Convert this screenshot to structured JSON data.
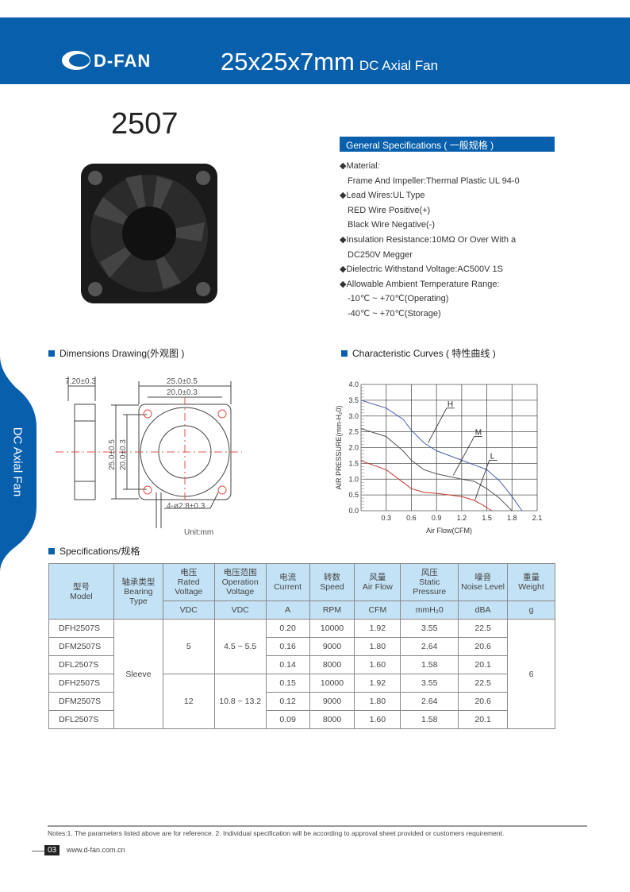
{
  "header": {
    "brand": "D-FAN",
    "size": "25x25x7mm",
    "type": "DC Axial Fan"
  },
  "model": "2507",
  "general": {
    "title": "General Specifications ( 一般规格 )",
    "lines": [
      {
        "bullet": true,
        "text": "Material:"
      },
      {
        "bullet": false,
        "text": "Frame And Impeller:Thermal Plastic UL 94-0"
      },
      {
        "bullet": true,
        "text": "Lead Wires:UL Type"
      },
      {
        "bullet": false,
        "text": "RED Wire Positive(+)"
      },
      {
        "bullet": false,
        "text": "Black Wire Negative(-)"
      },
      {
        "bullet": true,
        "text": "Insulation Resistance:10MΩ  Or Over With a"
      },
      {
        "bullet": false,
        "text": " DC250V Megger"
      },
      {
        "bullet": true,
        "text": "Dielectric Withstand Voltage:AC500V 1S"
      },
      {
        "bullet": true,
        "text": "Allowable Ambient Temperature Range:"
      },
      {
        "bullet": false,
        "text": "-10℃ ~ +70℃(Operating)"
      },
      {
        "bullet": false,
        "text": "-40℃ ~ +70℃(Storage)"
      }
    ]
  },
  "side_tab": "DC Axial Fan",
  "dimensions": {
    "title": "Dimensions Drawing(外观图 )",
    "thickness": "7.20±0.3",
    "outer": "25.0±0.5",
    "pitch": "20.0±0.3",
    "holes": "4-ø2.8±0.3",
    "unit": "Unit:mm"
  },
  "curves_title": "Characteristic Curves ( 特性曲线 )",
  "chart_data": {
    "type": "line",
    "xlabel": "Air Flow(CFM)",
    "ylabel": "AIR PRESSURE(mm-H₂0)",
    "xlim": [
      0,
      2.1
    ],
    "ylim": [
      0,
      4.0
    ],
    "grid": true,
    "xticks": [
      "0.3",
      "0.6",
      "0.9",
      "1.2",
      "1.5",
      "1.8",
      "2.1"
    ],
    "yticks": [
      "0.0",
      "0.5",
      "1.0",
      "1.5",
      "2.0",
      "2.5",
      "3.0",
      "3.5",
      "4.0"
    ],
    "series": [
      {
        "name": "H",
        "color": "#4a5fb0",
        "points": [
          [
            0,
            3.5
          ],
          [
            0.3,
            3.25
          ],
          [
            0.5,
            2.9
          ],
          [
            0.6,
            2.55
          ],
          [
            0.75,
            2.15
          ],
          [
            0.9,
            1.9
          ],
          [
            1.2,
            1.6
          ],
          [
            1.5,
            1.3
          ],
          [
            1.65,
            0.95
          ],
          [
            1.8,
            0.45
          ],
          [
            1.92,
            0
          ]
        ]
      },
      {
        "name": "M",
        "color": "#555555",
        "points": [
          [
            0,
            2.6
          ],
          [
            0.3,
            2.35
          ],
          [
            0.5,
            1.9
          ],
          [
            0.6,
            1.6
          ],
          [
            0.75,
            1.3
          ],
          [
            0.9,
            1.17
          ],
          [
            1.2,
            1.0
          ],
          [
            1.35,
            0.93
          ],
          [
            1.5,
            0.7
          ],
          [
            1.65,
            0.4
          ],
          [
            1.8,
            0
          ]
        ]
      },
      {
        "name": "L",
        "color": "#c0392b",
        "points": [
          [
            0,
            1.58
          ],
          [
            0.3,
            1.3
          ],
          [
            0.5,
            0.9
          ],
          [
            0.6,
            0.7
          ],
          [
            0.75,
            0.58
          ],
          [
            0.9,
            0.55
          ],
          [
            1.2,
            0.45
          ],
          [
            1.35,
            0.33
          ],
          [
            1.45,
            0.18
          ],
          [
            1.56,
            0
          ]
        ]
      }
    ]
  },
  "specs": {
    "title": "Specifications/规格",
    "headers": [
      [
        "型号",
        "Model"
      ],
      [
        "轴承类型",
        "Bearing",
        "Type"
      ],
      [
        "电压",
        "Rated",
        "Voltage"
      ],
      [
        "电压范围",
        "Operation",
        "Voltage"
      ],
      [
        "电流",
        "Current"
      ],
      [
        "转数",
        "Speed"
      ],
      [
        "风量",
        "Air Flow"
      ],
      [
        "风压",
        "Static",
        "Pressure"
      ],
      [
        "噪音",
        "Noise Level"
      ],
      [
        "重量",
        "Weight"
      ]
    ],
    "units": [
      "VDC",
      "VDC",
      "A",
      "RPM",
      "CFM",
      "mmH₂0",
      "dBA",
      "g"
    ],
    "bearing": "Sleeve",
    "weight": "6",
    "groups": [
      {
        "rated": "5",
        "range": "4.5 ~ 5.5"
      },
      {
        "rated": "12",
        "range": "10.8 ~ 13.2"
      }
    ],
    "rows": [
      [
        "DFH2507S",
        "0.20",
        "10000",
        "1.92",
        "3.55",
        "22.5"
      ],
      [
        "DFM2507S",
        "0.16",
        "9000",
        "1.80",
        "2.64",
        "20.6"
      ],
      [
        "DFL2507S",
        "0.14",
        "8000",
        "1.60",
        "1.58",
        "20.1"
      ],
      [
        "DFH2507S",
        "0.15",
        "10000",
        "1.92",
        "3.55",
        "22.5"
      ],
      [
        "DFM2507S",
        "0.12",
        "9000",
        "1.80",
        "2.64",
        "20.6"
      ],
      [
        "DFL2507S",
        "0.09",
        "8000",
        "1.60",
        "1.58",
        "20.1"
      ]
    ]
  },
  "footer": {
    "notes": "Notes:1. The parameters listed above are for reference.   2. Individual specification will be according to approval sheet provided or customers requirement.",
    "page": "03",
    "url": "www.d-fan.com.cn"
  }
}
